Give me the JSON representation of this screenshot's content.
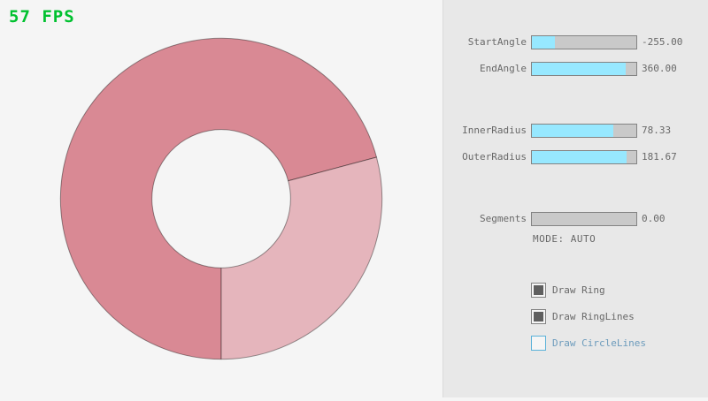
{
  "fps": {
    "label": "57 FPS",
    "color": "#00c12f"
  },
  "panel": {
    "sliders": [
      {
        "label": "StartAngle",
        "value": "-255.00",
        "fill_pct": 21.7
      },
      {
        "label": "EndAngle",
        "value": "360.00",
        "fill_pct": 90.0
      },
      {
        "label": "InnerRadius",
        "value": "78.33",
        "fill_pct": 78.3
      },
      {
        "label": "OuterRadius",
        "value": "181.67",
        "fill_pct": 90.8
      },
      {
        "label": "Segments",
        "value": "0.00",
        "fill_pct": 0
      }
    ],
    "mode_text": "MODE: AUTO",
    "checkboxes": [
      {
        "label": "Draw Ring",
        "checked": true
      },
      {
        "label": "Draw RingLines",
        "checked": true
      },
      {
        "label": "Draw CircleLines",
        "checked": false
      }
    ]
  },
  "ring": {
    "start_angle": -255,
    "end_angle": 360,
    "inner_radius": 78.33,
    "outer_radius": 181.67,
    "colors": {
      "single_pass": "#e5b5bc",
      "overlap": "#d98994",
      "outline": "rgba(0,0,0,0.4)",
      "slider_fill": "#97e8ff"
    }
  }
}
